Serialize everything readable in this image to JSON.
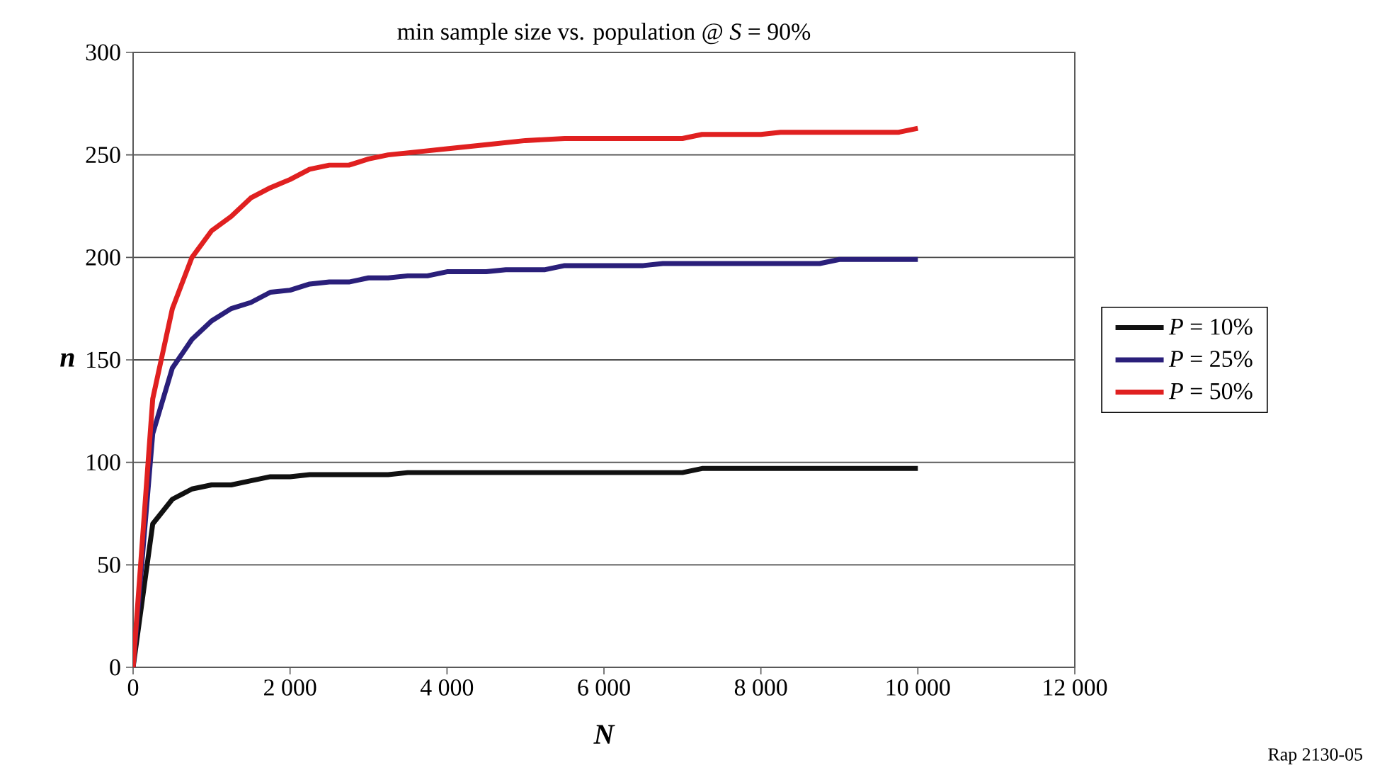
{
  "chart_data": {
    "type": "line",
    "title": "min sample size vs. population @  *S* = 90%",
    "xlabel": "N",
    "ylabel": "n",
    "xlim": [
      0,
      12000
    ],
    "ylim": [
      0,
      300
    ],
    "xticks": [
      0,
      {
        "value": 2000,
        "label": "2 000"
      },
      {
        "value": 4000,
        "label": "4 000"
      },
      {
        "value": 6000,
        "label": "6 000"
      },
      {
        "value": 8000,
        "label": "8 000"
      },
      {
        "value": 10000,
        "label": "10 000"
      },
      {
        "value": 12000,
        "label": "12 000"
      }
    ],
    "yticks": [
      0,
      50,
      100,
      150,
      200,
      250,
      300
    ],
    "grid": "y",
    "legend": "right",
    "marker": "none",
    "line_style": "solid",
    "annotations": [
      "Rap 2130-05"
    ],
    "series": [
      {
        "name": "*P* = 10%",
        "color": "#111111",
        "x": [
          0,
          250,
          500,
          750,
          1000,
          1250,
          1500,
          1750,
          2000,
          2250,
          3250,
          3500,
          7000,
          7250,
          10000
        ],
        "values": [
          0,
          70,
          82,
          87,
          89,
          89,
          91,
          93,
          93,
          94,
          94,
          95,
          95,
          97,
          97
        ]
      },
      {
        "name": "*P* = 25%",
        "color": "#2a1f7a",
        "x": [
          0,
          250,
          500,
          750,
          1000,
          1250,
          1500,
          1750,
          2000,
          2250,
          2500,
          2750,
          3000,
          3250,
          3500,
          3750,
          4000,
          4500,
          4750,
          5250,
          5500,
          6500,
          6750,
          8750,
          9000,
          10000
        ],
        "values": [
          0,
          114,
          146,
          160,
          169,
          175,
          178,
          183,
          184,
          187,
          188,
          188,
          190,
          190,
          191,
          191,
          193,
          193,
          194,
          194,
          196,
          196,
          197,
          197,
          199,
          199
        ]
      },
      {
        "name": "*P* = 50%",
        "color": "#e02020",
        "x": [
          0,
          250,
          500,
          750,
          1000,
          1250,
          1500,
          1750,
          2000,
          2250,
          2500,
          2750,
          3000,
          3250,
          3500,
          3750,
          4000,
          4500,
          5000,
          5500,
          7000,
          7250,
          8000,
          8250,
          9750,
          10000
        ],
        "values": [
          0,
          131,
          175,
          200,
          213,
          220,
          229,
          234,
          238,
          243,
          245,
          245,
          248,
          250,
          251,
          252,
          253,
          255,
          257,
          258,
          258,
          260,
          260,
          261,
          261,
          263
        ]
      }
    ]
  }
}
